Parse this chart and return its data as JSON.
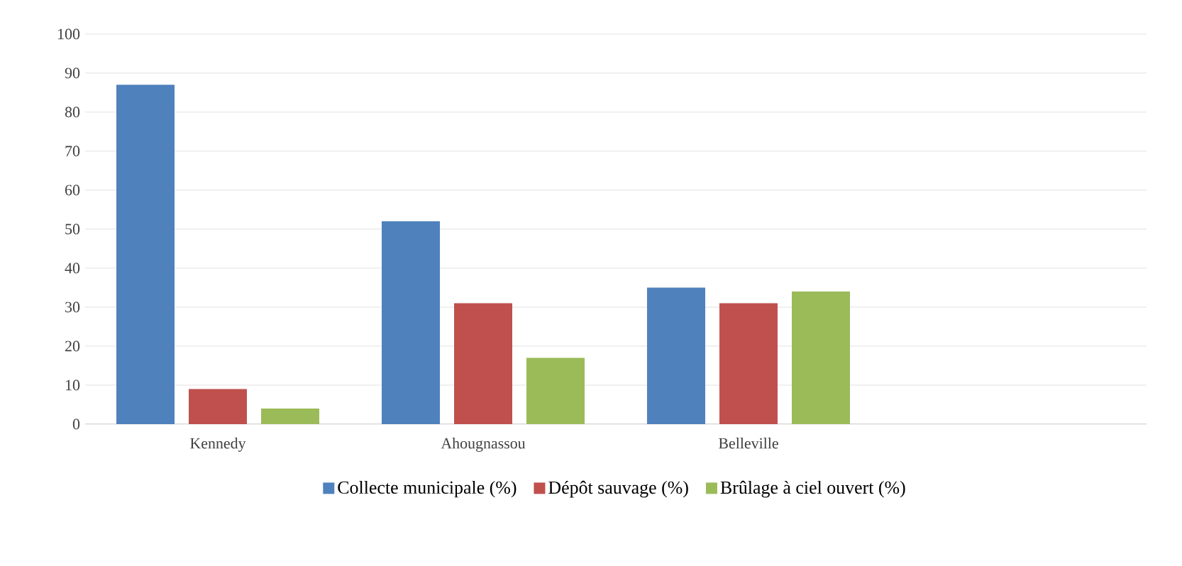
{
  "chart_data": {
    "type": "bar",
    "categories": [
      "Kennedy",
      "Ahougnassou",
      "Belleville",
      null
    ],
    "series": [
      {
        "name": "Collecte municipale (%)",
        "color": "#4f81bd",
        "values": [
          87,
          52,
          35,
          null
        ]
      },
      {
        "name": "Dépôt sauvage (%)",
        "color": "#c0504d",
        "values": [
          9,
          31,
          31,
          null
        ]
      },
      {
        "name": "Brûlage à ciel ouvert (%)",
        "color": "#9bbb59",
        "values": [
          4,
          17,
          34,
          null
        ]
      }
    ],
    "ylim": [
      0,
      100
    ],
    "yticks": [
      0,
      10,
      20,
      30,
      40,
      50,
      60,
      70,
      80,
      90,
      100
    ],
    "grid": "y",
    "legend": "bottom"
  }
}
